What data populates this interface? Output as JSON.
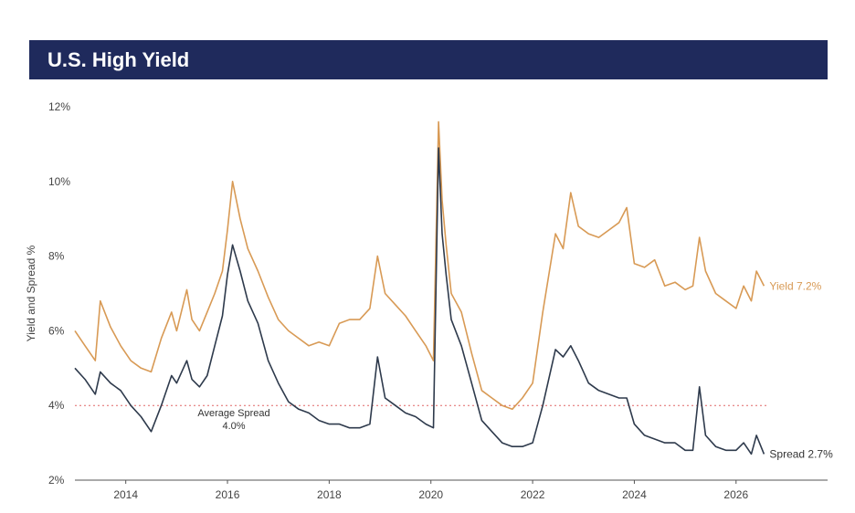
{
  "header": {
    "title": "U.S. High Yield"
  },
  "chart_data": {
    "type": "line",
    "ylabel": "Yield and Spread %",
    "ylim": [
      2,
      12
    ],
    "xlim": [
      2013.0,
      2027.8
    ],
    "y_ticks": [
      "2%",
      "4%",
      "6%",
      "8%",
      "10%",
      "12%"
    ],
    "y_tick_values": [
      2,
      4,
      6,
      8,
      10,
      12
    ],
    "x_ticks": [
      "2014",
      "2016",
      "2018",
      "2020",
      "2022",
      "2024",
      "2026"
    ],
    "x_tick_values": [
      2014,
      2016,
      2018,
      2020,
      2022,
      2024,
      2026
    ],
    "grid": false,
    "colors": {
      "yield": "#d89a55",
      "spread": "#2e3a4c",
      "average": "#e06666",
      "header": "#1f2a5c"
    },
    "average_line": {
      "value": 4.0,
      "label_line1": "Average Spread",
      "label_line2": "4.0%"
    },
    "series": [
      {
        "name": "Yield",
        "end_label": "Yield 7.2%",
        "x": [
          2013.0,
          2013.2,
          2013.4,
          2013.5,
          2013.7,
          2013.9,
          2014.1,
          2014.3,
          2014.5,
          2014.7,
          2014.9,
          2015.0,
          2015.2,
          2015.3,
          2015.45,
          2015.6,
          2015.75,
          2015.9,
          2016.0,
          2016.1,
          2016.25,
          2016.4,
          2016.6,
          2016.8,
          2017.0,
          2017.2,
          2017.4,
          2017.6,
          2017.8,
          2018.0,
          2018.2,
          2018.4,
          2018.6,
          2018.8,
          2018.95,
          2019.1,
          2019.3,
          2019.5,
          2019.7,
          2019.9,
          2020.05,
          2020.15,
          2020.22,
          2020.3,
          2020.4,
          2020.6,
          2020.8,
          2021.0,
          2021.2,
          2021.4,
          2021.6,
          2021.8,
          2022.0,
          2022.2,
          2022.45,
          2022.6,
          2022.75,
          2022.9,
          2023.1,
          2023.3,
          2023.5,
          2023.7,
          2023.85,
          2024.0,
          2024.2,
          2024.4,
          2024.6,
          2024.8,
          2025.0,
          2025.15,
          2025.28,
          2025.4,
          2025.6,
          2025.8,
          2026.0,
          2026.15,
          2026.3,
          2026.4,
          2026.55
        ],
        "values": [
          6.0,
          5.6,
          5.2,
          6.8,
          6.1,
          5.6,
          5.2,
          5.0,
          4.9,
          5.8,
          6.5,
          6.0,
          7.1,
          6.3,
          6.0,
          6.5,
          7.0,
          7.6,
          8.7,
          10.0,
          9.0,
          8.2,
          7.6,
          6.9,
          6.3,
          6.0,
          5.8,
          5.6,
          5.7,
          5.6,
          6.2,
          6.3,
          6.3,
          6.6,
          8.0,
          7.0,
          6.7,
          6.4,
          6.0,
          5.6,
          5.2,
          11.6,
          9.5,
          8.3,
          7.0,
          6.5,
          5.4,
          4.4,
          4.2,
          4.0,
          3.9,
          4.2,
          4.6,
          6.5,
          8.6,
          8.2,
          9.7,
          8.8,
          8.6,
          8.5,
          8.7,
          8.9,
          9.3,
          7.8,
          7.7,
          7.9,
          7.2,
          7.3,
          7.1,
          7.2,
          8.5,
          7.6,
          7.0,
          6.8,
          6.6,
          7.2,
          6.8,
          7.6,
          7.2
        ]
      },
      {
        "name": "Spread",
        "end_label": "Spread 2.7%",
        "x": [
          2013.0,
          2013.2,
          2013.4,
          2013.5,
          2013.7,
          2013.9,
          2014.1,
          2014.3,
          2014.5,
          2014.7,
          2014.9,
          2015.0,
          2015.2,
          2015.3,
          2015.45,
          2015.6,
          2015.75,
          2015.9,
          2016.0,
          2016.1,
          2016.25,
          2016.4,
          2016.6,
          2016.8,
          2017.0,
          2017.2,
          2017.4,
          2017.6,
          2017.8,
          2018.0,
          2018.2,
          2018.4,
          2018.6,
          2018.8,
          2018.95,
          2019.1,
          2019.3,
          2019.5,
          2019.7,
          2019.9,
          2020.05,
          2020.15,
          2020.22,
          2020.3,
          2020.4,
          2020.6,
          2020.8,
          2021.0,
          2021.2,
          2021.4,
          2021.6,
          2021.8,
          2022.0,
          2022.2,
          2022.45,
          2022.6,
          2022.75,
          2022.9,
          2023.1,
          2023.3,
          2023.5,
          2023.7,
          2023.85,
          2024.0,
          2024.2,
          2024.4,
          2024.6,
          2024.8,
          2025.0,
          2025.15,
          2025.28,
          2025.4,
          2025.6,
          2025.8,
          2026.0,
          2026.15,
          2026.3,
          2026.4,
          2026.55
        ],
        "values": [
          5.0,
          4.7,
          4.3,
          4.9,
          4.6,
          4.4,
          4.0,
          3.7,
          3.3,
          4.0,
          4.8,
          4.6,
          5.2,
          4.7,
          4.5,
          4.8,
          5.6,
          6.4,
          7.5,
          8.3,
          7.6,
          6.8,
          6.2,
          5.2,
          4.6,
          4.1,
          3.9,
          3.8,
          3.6,
          3.5,
          3.5,
          3.4,
          3.4,
          3.5,
          5.3,
          4.2,
          4.0,
          3.8,
          3.7,
          3.5,
          3.4,
          10.9,
          8.6,
          7.5,
          6.3,
          5.6,
          4.6,
          3.6,
          3.3,
          3.0,
          2.9,
          2.9,
          3.0,
          4.0,
          5.5,
          5.3,
          5.6,
          5.2,
          4.6,
          4.4,
          4.3,
          4.2,
          4.2,
          3.5,
          3.2,
          3.1,
          3.0,
          3.0,
          2.8,
          2.8,
          4.5,
          3.2,
          2.9,
          2.8,
          2.8,
          3.0,
          2.7,
          3.2,
          2.7
        ]
      }
    ]
  }
}
